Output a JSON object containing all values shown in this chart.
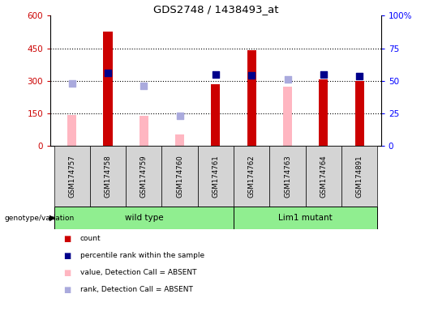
{
  "title": "GDS2748 / 1438493_at",
  "samples": [
    "GSM174757",
    "GSM174758",
    "GSM174759",
    "GSM174760",
    "GSM174761",
    "GSM174762",
    "GSM174763",
    "GSM174764",
    "GSM174891"
  ],
  "count_present": [
    null,
    525,
    null,
    null,
    285,
    440,
    null,
    305,
    300
  ],
  "count_absent": [
    145,
    null,
    140,
    55,
    null,
    null,
    275,
    null,
    null
  ],
  "rank_present": [
    null,
    335,
    null,
    null,
    330,
    325,
    null,
    330,
    320
  ],
  "rank_absent": [
    290,
    null,
    278,
    140,
    null,
    null,
    308,
    null,
    null
  ],
  "wild_type_color": "#90EE90",
  "lim1_mutant_color": "#90EE90",
  "bar_color_present": "#CC0000",
  "bar_color_absent": "#FFB6C1",
  "square_color_present": "#00008B",
  "square_color_absent": "#AAAADD",
  "ylim": [
    0,
    600
  ],
  "yticks_left": [
    0,
    150,
    300,
    450,
    600
  ],
  "ytick_labels_left": [
    "0",
    "150",
    "300",
    "450",
    "600"
  ],
  "ytick_labels_right": [
    "0",
    "25",
    "50",
    "75",
    "100%"
  ],
  "group_label": "genotype/variation",
  "legend": [
    {
      "label": "count",
      "color": "#CC0000"
    },
    {
      "label": "percentile rank within the sample",
      "color": "#00008B"
    },
    {
      "label": "value, Detection Call = ABSENT",
      "color": "#FFB6C1"
    },
    {
      "label": "rank, Detection Call = ABSENT",
      "color": "#AAAADD"
    }
  ]
}
